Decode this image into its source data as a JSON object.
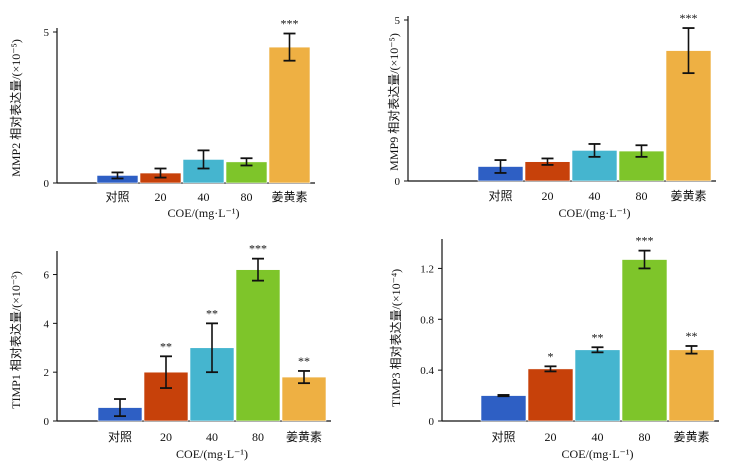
{
  "chart_data": [
    {
      "type": "bar",
      "panel": "MMP2",
      "ylabel": "MMP2 相对表达量/(×10⁻⁵)",
      "xlabel": "COE/(mg·L⁻¹)",
      "categories": [
        "对照",
        "20",
        "40",
        "80",
        "姜黄素"
      ],
      "values": [
        0.25,
        0.33,
        0.78,
        0.7,
        4.5
      ],
      "errors": [
        0.1,
        0.15,
        0.3,
        0.12,
        0.45
      ],
      "significance": [
        "",
        "",
        "",
        "",
        "***"
      ],
      "ylim": [
        0,
        5
      ],
      "yticks": [
        "0",
        "5"
      ],
      "colors": [
        "#2e5fc4",
        "#c7410a",
        "#45b5cf",
        "#7ec52a",
        "#eeb043"
      ],
      "grid": false
    },
    {
      "type": "bar",
      "panel": "MMP9",
      "ylabel": "MMP9 相对表达量/(×10⁻⁵)",
      "xlabel": "COE/(mg·L⁻¹)",
      "categories": [
        "对照",
        "20",
        "40",
        "80",
        "姜黄素"
      ],
      "values": [
        0.45,
        0.6,
        0.95,
        0.93,
        4.05
      ],
      "errors": [
        0.2,
        0.1,
        0.2,
        0.18,
        0.7
      ],
      "significance": [
        "",
        "",
        "",
        "",
        "***"
      ],
      "ylim": [
        0,
        5
      ],
      "yticks": [
        "0",
        "5"
      ],
      "colors": [
        "#2e5fc4",
        "#c7410a",
        "#45b5cf",
        "#7ec52a",
        "#eeb043"
      ],
      "grid": false
    },
    {
      "type": "bar",
      "panel": "TIMP1",
      "ylabel": "TIMP1 相对表达量/(×10⁻³)",
      "xlabel": "COE/(mg·L⁻¹)",
      "categories": [
        "对照",
        "20",
        "40",
        "80",
        "姜黄素"
      ],
      "values": [
        0.55,
        2.0,
        3.0,
        6.2,
        1.8
      ],
      "errors": [
        0.35,
        0.65,
        1.0,
        0.45,
        0.25
      ],
      "significance": [
        "",
        "**",
        "**",
        "***",
        "**"
      ],
      "ylim": [
        0,
        6.8
      ],
      "yticks": [
        "0",
        "2",
        "4",
        "6"
      ],
      "colors": [
        "#2e5fc4",
        "#c7410a",
        "#45b5cf",
        "#7ec52a",
        "#eeb043"
      ],
      "grid": false
    },
    {
      "type": "bar",
      "panel": "TIMP3",
      "ylabel": "TIMP3 相对表达量/(×10⁻⁴)",
      "xlabel": "COE/(mg·L⁻¹)",
      "categories": [
        "对照",
        "20",
        "40",
        "80",
        "姜黄素"
      ],
      "values": [
        0.2,
        0.41,
        0.56,
        1.27,
        0.56
      ],
      "errors": [
        0.005,
        0.02,
        0.02,
        0.07,
        0.03
      ],
      "significance": [
        "",
        "*",
        "**",
        "***",
        "**"
      ],
      "ylim": [
        0,
        1.4
      ],
      "yticks": [
        "0",
        "0.4",
        "0.8",
        "1.2"
      ],
      "colors": [
        "#2e5fc4",
        "#c7410a",
        "#45b5cf",
        "#7ec52a",
        "#eeb043"
      ],
      "grid": false
    }
  ]
}
